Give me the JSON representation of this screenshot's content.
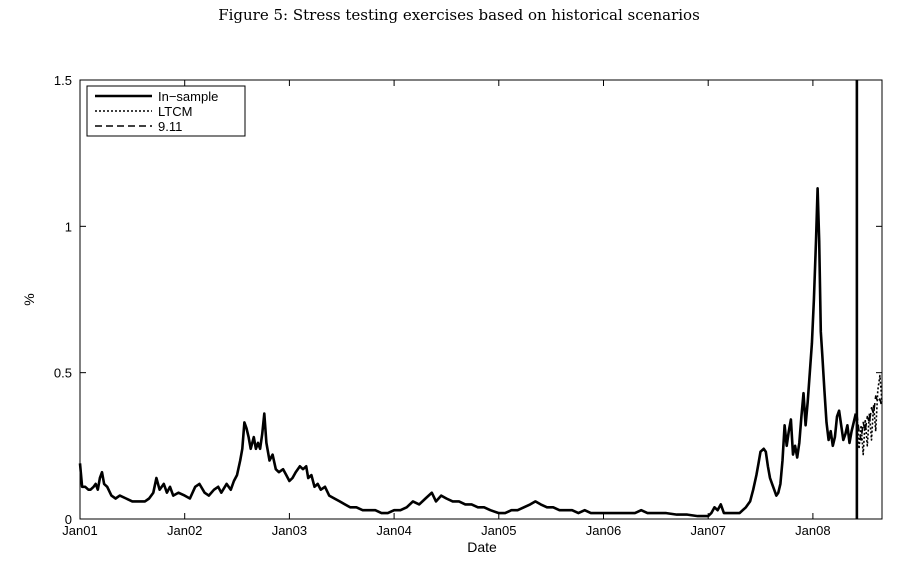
{
  "figure": {
    "title": "Figure 5: Stress testing exercises based on historical scenarios"
  },
  "chart_data": {
    "type": "line",
    "title": "Figure 5: Stress testing exercises based on historical scenarios",
    "xlabel": "Date",
    "ylabel": "%",
    "xlim": [
      2001.0,
      2008.66
    ],
    "ylim": [
      0,
      1.5
    ],
    "x_ticks": [
      {
        "value": 2001.0,
        "label": "Jan01"
      },
      {
        "value": 2002.0,
        "label": "Jan02"
      },
      {
        "value": 2003.0,
        "label": "Jan03"
      },
      {
        "value": 2004.0,
        "label": "Jan04"
      },
      {
        "value": 2005.0,
        "label": "Jan05"
      },
      {
        "value": 2006.0,
        "label": "Jan06"
      },
      {
        "value": 2007.0,
        "label": "Jan07"
      },
      {
        "value": 2008.0,
        "label": "Jan08"
      }
    ],
    "y_ticks": [
      {
        "value": 0,
        "label": "0"
      },
      {
        "value": 0.5,
        "label": "0.5"
      },
      {
        "value": 1,
        "label": "1"
      },
      {
        "value": 1.5,
        "label": "1.5"
      }
    ],
    "grid": false,
    "legend_position": "top-left",
    "vertical_line": {
      "x": 2008.42
    },
    "series": [
      {
        "name": "In−sample",
        "style": "solid",
        "color": "#000000",
        "points": [
          [
            2001.0,
            0.19
          ],
          [
            2001.02,
            0.11
          ],
          [
            2001.05,
            0.11
          ],
          [
            2001.08,
            0.1
          ],
          [
            2001.1,
            0.1
          ],
          [
            2001.13,
            0.11
          ],
          [
            2001.15,
            0.12
          ],
          [
            2001.17,
            0.1
          ],
          [
            2001.19,
            0.14
          ],
          [
            2001.21,
            0.16
          ],
          [
            2001.23,
            0.12
          ],
          [
            2001.26,
            0.11
          ],
          [
            2001.3,
            0.08
          ],
          [
            2001.34,
            0.07
          ],
          [
            2001.38,
            0.08
          ],
          [
            2001.44,
            0.07
          ],
          [
            2001.5,
            0.06
          ],
          [
            2001.56,
            0.06
          ],
          [
            2001.62,
            0.06
          ],
          [
            2001.66,
            0.07
          ],
          [
            2001.7,
            0.09
          ],
          [
            2001.73,
            0.14
          ],
          [
            2001.76,
            0.1
          ],
          [
            2001.8,
            0.12
          ],
          [
            2001.83,
            0.09
          ],
          [
            2001.86,
            0.11
          ],
          [
            2001.89,
            0.08
          ],
          [
            2001.94,
            0.09
          ],
          [
            2002.0,
            0.08
          ],
          [
            2002.05,
            0.07
          ],
          [
            2002.1,
            0.11
          ],
          [
            2002.14,
            0.12
          ],
          [
            2002.19,
            0.09
          ],
          [
            2002.23,
            0.08
          ],
          [
            2002.28,
            0.1
          ],
          [
            2002.32,
            0.11
          ],
          [
            2002.35,
            0.09
          ],
          [
            2002.4,
            0.12
          ],
          [
            2002.44,
            0.1
          ],
          [
            2002.47,
            0.13
          ],
          [
            2002.5,
            0.15
          ],
          [
            2002.53,
            0.2
          ],
          [
            2002.55,
            0.24
          ],
          [
            2002.57,
            0.33
          ],
          [
            2002.59,
            0.31
          ],
          [
            2002.61,
            0.28
          ],
          [
            2002.63,
            0.24
          ],
          [
            2002.66,
            0.28
          ],
          [
            2002.68,
            0.24
          ],
          [
            2002.7,
            0.26
          ],
          [
            2002.72,
            0.24
          ],
          [
            2002.74,
            0.29
          ],
          [
            2002.76,
            0.36
          ],
          [
            2002.78,
            0.26
          ],
          [
            2002.81,
            0.2
          ],
          [
            2002.84,
            0.22
          ],
          [
            2002.87,
            0.17
          ],
          [
            2002.9,
            0.16
          ],
          [
            2002.94,
            0.17
          ],
          [
            2002.97,
            0.15
          ],
          [
            2003.0,
            0.13
          ],
          [
            2003.03,
            0.14
          ],
          [
            2003.06,
            0.16
          ],
          [
            2003.1,
            0.18
          ],
          [
            2003.13,
            0.17
          ],
          [
            2003.16,
            0.18
          ],
          [
            2003.18,
            0.14
          ],
          [
            2003.21,
            0.15
          ],
          [
            2003.24,
            0.11
          ],
          [
            2003.27,
            0.12
          ],
          [
            2003.3,
            0.1
          ],
          [
            2003.34,
            0.11
          ],
          [
            2003.38,
            0.08
          ],
          [
            2003.43,
            0.07
          ],
          [
            2003.48,
            0.06
          ],
          [
            2003.53,
            0.05
          ],
          [
            2003.58,
            0.04
          ],
          [
            2003.64,
            0.04
          ],
          [
            2003.7,
            0.03
          ],
          [
            2003.76,
            0.03
          ],
          [
            2003.82,
            0.03
          ],
          [
            2003.88,
            0.02
          ],
          [
            2003.94,
            0.02
          ],
          [
            2004.0,
            0.03
          ],
          [
            2004.06,
            0.03
          ],
          [
            2004.12,
            0.04
          ],
          [
            2004.18,
            0.06
          ],
          [
            2004.24,
            0.05
          ],
          [
            2004.3,
            0.07
          ],
          [
            2004.36,
            0.09
          ],
          [
            2004.4,
            0.06
          ],
          [
            2004.45,
            0.08
          ],
          [
            2004.5,
            0.07
          ],
          [
            2004.56,
            0.06
          ],
          [
            2004.62,
            0.06
          ],
          [
            2004.68,
            0.05
          ],
          [
            2004.74,
            0.05
          ],
          [
            2004.8,
            0.04
          ],
          [
            2004.86,
            0.04
          ],
          [
            2004.92,
            0.03
          ],
          [
            2005.0,
            0.02
          ],
          [
            2005.06,
            0.02
          ],
          [
            2005.12,
            0.03
          ],
          [
            2005.18,
            0.03
          ],
          [
            2005.24,
            0.04
          ],
          [
            2005.3,
            0.05
          ],
          [
            2005.35,
            0.06
          ],
          [
            2005.4,
            0.05
          ],
          [
            2005.46,
            0.04
          ],
          [
            2005.52,
            0.04
          ],
          [
            2005.58,
            0.03
          ],
          [
            2005.64,
            0.03
          ],
          [
            2005.7,
            0.03
          ],
          [
            2005.76,
            0.02
          ],
          [
            2005.82,
            0.03
          ],
          [
            2005.88,
            0.02
          ],
          [
            2005.94,
            0.02
          ],
          [
            2006.0,
            0.02
          ],
          [
            2006.1,
            0.02
          ],
          [
            2006.2,
            0.02
          ],
          [
            2006.3,
            0.02
          ],
          [
            2006.36,
            0.03
          ],
          [
            2006.42,
            0.02
          ],
          [
            2006.5,
            0.02
          ],
          [
            2006.6,
            0.02
          ],
          [
            2006.7,
            0.015
          ],
          [
            2006.8,
            0.015
          ],
          [
            2006.9,
            0.01
          ],
          [
            2006.96,
            0.01
          ],
          [
            2007.0,
            0.01
          ],
          [
            2007.03,
            0.02
          ],
          [
            2007.06,
            0.04
          ],
          [
            2007.09,
            0.03
          ],
          [
            2007.12,
            0.05
          ],
          [
            2007.15,
            0.02
          ],
          [
            2007.2,
            0.02
          ],
          [
            2007.26,
            0.02
          ],
          [
            2007.3,
            0.02
          ],
          [
            2007.33,
            0.03
          ],
          [
            2007.36,
            0.04
          ],
          [
            2007.4,
            0.06
          ],
          [
            2007.43,
            0.1
          ],
          [
            2007.46,
            0.15
          ],
          [
            2007.48,
            0.19
          ],
          [
            2007.5,
            0.23
          ],
          [
            2007.53,
            0.24
          ],
          [
            2007.55,
            0.23
          ],
          [
            2007.57,
            0.18
          ],
          [
            2007.59,
            0.14
          ],
          [
            2007.61,
            0.12
          ],
          [
            2007.63,
            0.1
          ],
          [
            2007.65,
            0.08
          ],
          [
            2007.67,
            0.09
          ],
          [
            2007.69,
            0.12
          ],
          [
            2007.71,
            0.2
          ],
          [
            2007.73,
            0.32
          ],
          [
            2007.75,
            0.25
          ],
          [
            2007.77,
            0.3
          ],
          [
            2007.79,
            0.34
          ],
          [
            2007.81,
            0.22
          ],
          [
            2007.83,
            0.25
          ],
          [
            2007.85,
            0.21
          ],
          [
            2007.87,
            0.26
          ],
          [
            2007.89,
            0.35
          ],
          [
            2007.91,
            0.43
          ],
          [
            2007.93,
            0.32
          ],
          [
            2007.95,
            0.4
          ],
          [
            2007.97,
            0.5
          ],
          [
            2007.99,
            0.6
          ],
          [
            2008.01,
            0.75
          ],
          [
            2008.03,
            0.95
          ],
          [
            2008.045,
            1.13
          ],
          [
            2008.06,
            0.95
          ],
          [
            2008.075,
            0.64
          ],
          [
            2008.09,
            0.56
          ],
          [
            2008.11,
            0.44
          ],
          [
            2008.13,
            0.33
          ],
          [
            2008.15,
            0.27
          ],
          [
            2008.17,
            0.3
          ],
          [
            2008.19,
            0.25
          ],
          [
            2008.21,
            0.28
          ],
          [
            2008.23,
            0.35
          ],
          [
            2008.25,
            0.37
          ],
          [
            2008.27,
            0.32
          ],
          [
            2008.29,
            0.27
          ],
          [
            2008.31,
            0.29
          ],
          [
            2008.33,
            0.32
          ],
          [
            2008.35,
            0.26
          ],
          [
            2008.37,
            0.3
          ],
          [
            2008.39,
            0.33
          ],
          [
            2008.41,
            0.36
          ]
        ]
      },
      {
        "name": "LTCM",
        "style": "dotted",
        "color": "#000000",
        "points": [
          [
            2008.42,
            0.36
          ],
          [
            2008.44,
            0.24
          ],
          [
            2008.46,
            0.32
          ],
          [
            2008.48,
            0.22
          ],
          [
            2008.5,
            0.34
          ],
          [
            2008.52,
            0.25
          ],
          [
            2008.54,
            0.36
          ],
          [
            2008.56,
            0.27
          ],
          [
            2008.58,
            0.39
          ],
          [
            2008.6,
            0.3
          ],
          [
            2008.62,
            0.44
          ],
          [
            2008.64,
            0.49
          ],
          [
            2008.66,
            0.4
          ]
        ]
      },
      {
        "name": "9.11",
        "style": "dashed",
        "color": "#000000",
        "points": [
          [
            2008.42,
            0.36
          ],
          [
            2008.44,
            0.3
          ],
          [
            2008.46,
            0.27
          ],
          [
            2008.48,
            0.33
          ],
          [
            2008.5,
            0.3
          ],
          [
            2008.52,
            0.35
          ],
          [
            2008.54,
            0.33
          ],
          [
            2008.56,
            0.38
          ],
          [
            2008.58,
            0.36
          ],
          [
            2008.6,
            0.42
          ],
          [
            2008.62,
            0.4
          ],
          [
            2008.64,
            0.41
          ],
          [
            2008.66,
            0.38
          ]
        ]
      }
    ]
  }
}
